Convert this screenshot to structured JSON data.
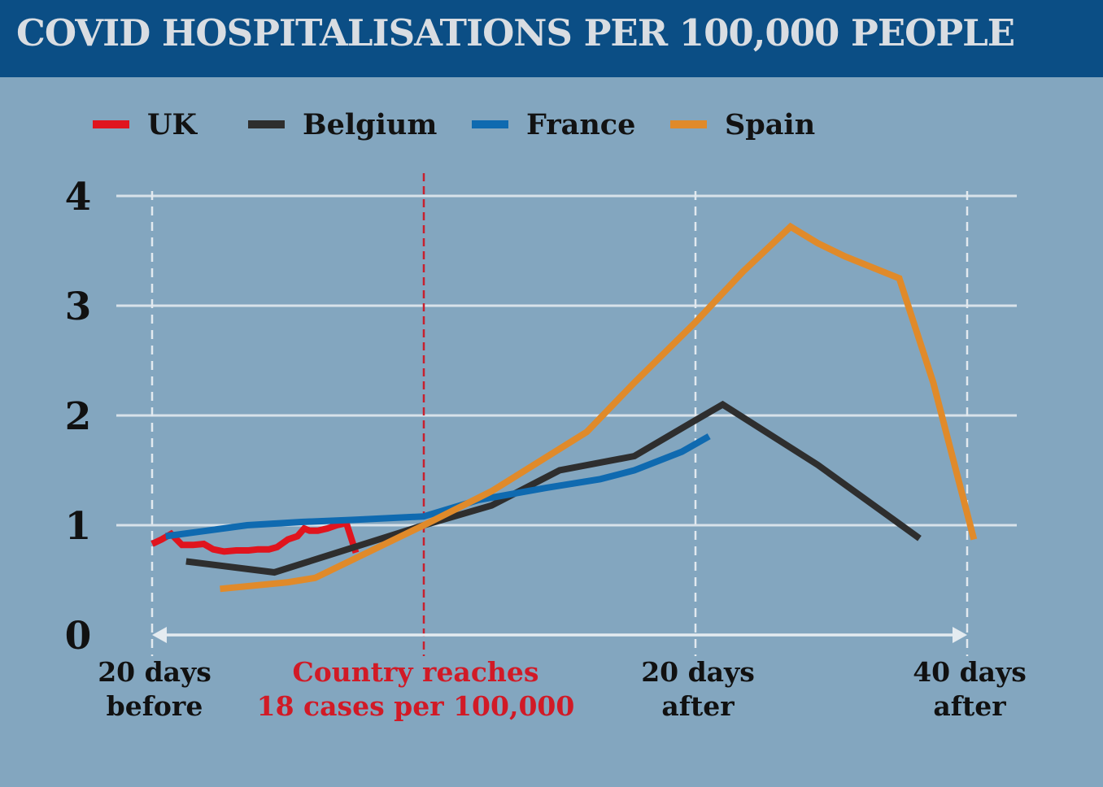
{
  "header": {
    "title": "COVID HOSPITALISATIONS PER 100,000 PEOPLE"
  },
  "chart_data": {
    "type": "line",
    "title": "COVID HOSPITALISATIONS PER 100,000 PEOPLE",
    "xlabel": "",
    "ylabel": "",
    "xlim": [
      -20,
      40
    ],
    "ylim": [
      0,
      4
    ],
    "yticks": [
      "0",
      "1",
      "2",
      "3",
      "4"
    ],
    "xticks": [
      {
        "x": -20,
        "lines": [
          "20 days",
          "before"
        ],
        "highlight": false
      },
      {
        "x": 0,
        "lines": [
          "Country reaches",
          "18 cases per 100,000"
        ],
        "highlight": true
      },
      {
        "x": 20,
        "lines": [
          "20 days",
          "after"
        ],
        "highlight": false
      },
      {
        "x": 40,
        "lines": [
          "40 days",
          "after"
        ],
        "highlight": false
      }
    ],
    "marker_line": {
      "x": 0,
      "color": "#c8202e"
    },
    "grid": true,
    "legend_position": "top",
    "series": [
      {
        "name": "UK",
        "color": "#e0141e",
        "x": [
          -20,
          -19.3,
          -18.6,
          -17.8,
          -17,
          -16.2,
          -15.5,
          -14.7,
          -13.8,
          -12.9,
          -12.2,
          -11.4,
          -10.8,
          -10,
          -9.3,
          -8.8,
          -8.4,
          -7.8,
          -7.1,
          -6.4,
          -5.7,
          -5
        ],
        "y": [
          0.83,
          0.87,
          0.92,
          0.82,
          0.82,
          0.83,
          0.78,
          0.76,
          0.77,
          0.77,
          0.78,
          0.78,
          0.8,
          0.87,
          0.9,
          0.97,
          0.95,
          0.95,
          0.97,
          1.0,
          1.02,
          0.75
        ]
      },
      {
        "name": "Belgium",
        "color": "#2e2e2e",
        "x": [
          -17.5,
          -11,
          0,
          5,
          10,
          15.5,
          19.5,
          22,
          29,
          36.5
        ],
        "y": [
          0.67,
          0.57,
          1.0,
          1.18,
          1.5,
          1.63,
          1.92,
          2.1,
          1.55,
          0.88
        ]
      },
      {
        "name": "France",
        "color": "#0f6ab0",
        "x": [
          -19,
          -16,
          -13,
          -9,
          -5,
          0,
          4,
          9,
          13,
          15.5,
          19,
          21
        ],
        "y": [
          0.9,
          0.95,
          1.0,
          1.03,
          1.05,
          1.08,
          1.23,
          1.34,
          1.42,
          1.5,
          1.67,
          1.81
        ]
      },
      {
        "name": "Spain",
        "color": "#e08a2a",
        "x": [
          -15,
          -10,
          -8,
          0,
          5,
          12,
          15.5,
          20,
          23.5,
          27,
          29,
          31,
          35,
          37.5,
          40.5
        ],
        "y": [
          0.42,
          0.48,
          0.52,
          1.0,
          1.31,
          1.85,
          2.3,
          2.85,
          3.31,
          3.72,
          3.57,
          3.45,
          3.25,
          2.3,
          0.87
        ]
      }
    ]
  }
}
